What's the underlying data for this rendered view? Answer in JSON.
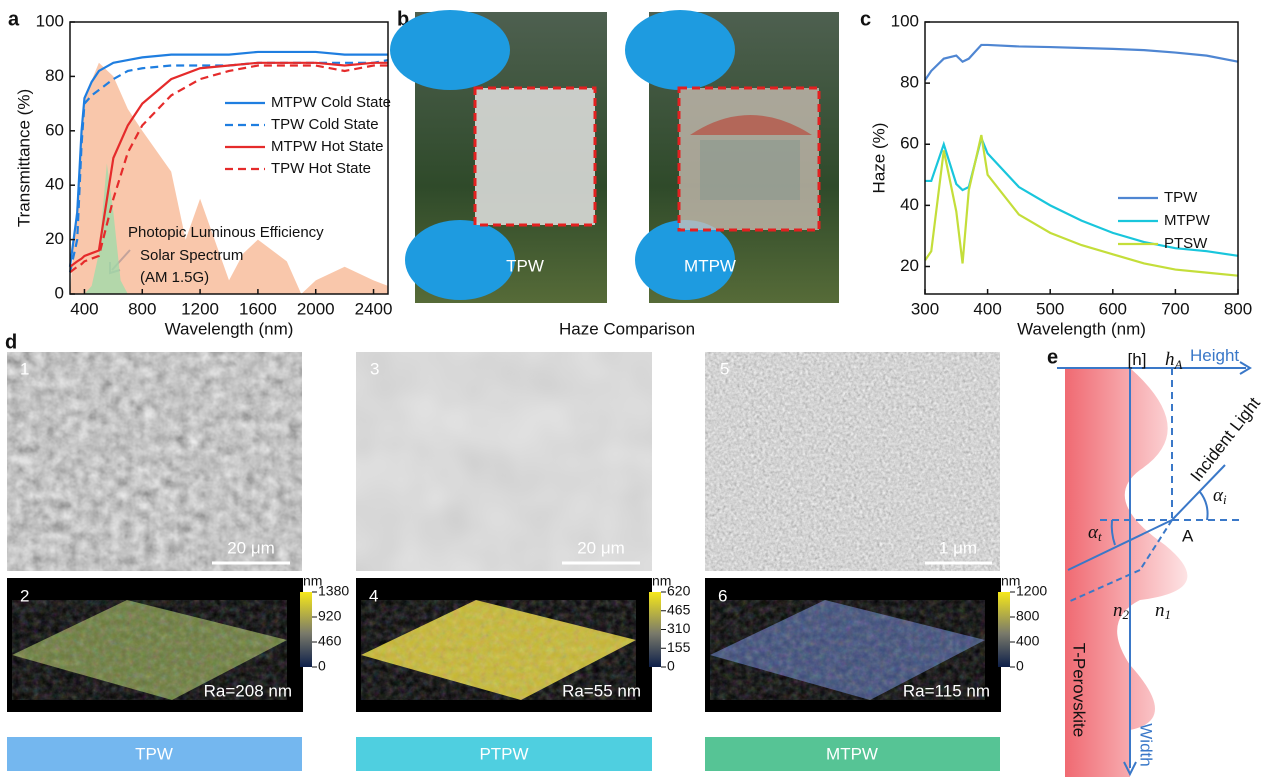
{
  "chart_data": [
    {
      "type": "line",
      "panel": "a",
      "xlabel": "Wavelength (nm)",
      "ylabel": "Transmittance  (%)",
      "xlim": [
        300,
        2500
      ],
      "ylim": [
        0,
        100
      ],
      "xticks": [
        400,
        800,
        1200,
        1600,
        2000,
        2400
      ],
      "yticks": [
        0,
        20,
        40,
        60,
        80,
        100
      ],
      "x": [
        300,
        350,
        380,
        400,
        450,
        500,
        600,
        700,
        800,
        1000,
        1200,
        1400,
        1600,
        1800,
        2000,
        2200,
        2400,
        2500
      ],
      "series": [
        {
          "name": "MTPW Cold State",
          "color": "#1f7ee0",
          "dash": false,
          "values": [
            10,
            30,
            60,
            72,
            78,
            82,
            85,
            86,
            87,
            88,
            88,
            88,
            89,
            89,
            89,
            88,
            88,
            88
          ]
        },
        {
          "name": "TPW Cold State",
          "color": "#1f7ee0",
          "dash": true,
          "values": [
            8,
            20,
            55,
            70,
            73,
            75,
            79,
            82,
            83,
            84,
            84,
            84,
            85,
            85,
            85,
            85,
            85,
            86
          ]
        },
        {
          "name": "MTPW Hot State",
          "color": "#e52b2b",
          "dash": false,
          "values": [
            10,
            12,
            13,
            14,
            15,
            16,
            50,
            62,
            70,
            79,
            83,
            84,
            85,
            85,
            85,
            84,
            85,
            85
          ]
        },
        {
          "name": "TPW Hot State",
          "color": "#e52b2b",
          "dash": true,
          "values": [
            8,
            10,
            11,
            12,
            13,
            14,
            35,
            52,
            62,
            73,
            79,
            82,
            84,
            84,
            84,
            82,
            84,
            84
          ]
        }
      ],
      "areas": [
        {
          "color": "#f7b48f",
          "x": [
            300,
            400,
            500,
            600,
            700,
            800,
            1000,
            1100,
            1200,
            1400,
            1500,
            1600,
            1800,
            1900,
            2000,
            2200,
            2400,
            2500
          ],
          "values": [
            0,
            72,
            85,
            80,
            68,
            60,
            45,
            20,
            35,
            5,
            15,
            20,
            12,
            0,
            5,
            10,
            5,
            3
          ]
        },
        {
          "color": "#9bdcaa",
          "x": [
            400,
            450,
            500,
            555,
            600,
            650,
            700
          ],
          "values": [
            0,
            3,
            15,
            48,
            30,
            5,
            0
          ]
        }
      ],
      "annotations": [
        "Photopic Luminous Efficiency",
        "Solar Spectrum",
        "(AM 1.5G)"
      ],
      "legend": "center right"
    },
    {
      "type": "line",
      "panel": "c",
      "xlabel": "Wavelength (nm)",
      "ylabel": "Haze (%)",
      "xlim": [
        300,
        800
      ],
      "ylim": [
        11,
        100
      ],
      "xticks": [
        300,
        400,
        500,
        600,
        700,
        800
      ],
      "yticks": [
        20,
        40,
        60,
        80,
        100
      ],
      "x": [
        300,
        310,
        330,
        350,
        360,
        370,
        390,
        400,
        450,
        500,
        550,
        600,
        650,
        700,
        750,
        800
      ],
      "series": [
        {
          "name": "TPW",
          "color": "#4f86d2",
          "dash": false,
          "values": [
            81,
            84,
            88,
            89,
            87,
            88,
            92.5,
            92.5,
            92,
            91.8,
            91.5,
            91.2,
            90.8,
            90,
            89,
            87
          ]
        },
        {
          "name": "MTPW",
          "color": "#19c6dc",
          "dash": false,
          "values": [
            48,
            48,
            60,
            47,
            45,
            46,
            62,
            57,
            46,
            40,
            35,
            31,
            28,
            26,
            25,
            23.5
          ]
        },
        {
          "name": "PTSW",
          "color": "#c4de3a",
          "dash": false,
          "values": [
            22,
            25,
            58,
            38,
            21,
            45,
            63,
            50,
            37,
            31,
            27,
            24,
            21,
            19,
            18,
            17
          ]
        }
      ],
      "areas": [],
      "annotations": [],
      "legend": "center right"
    }
  ],
  "panel_b": {
    "panel": "b",
    "left": "TPW",
    "right": "MTPW",
    "caption": "Haze Comparison"
  },
  "panel_d": {
    "panel": "d",
    "sem": [
      {
        "index": "1",
        "scale": "20 μm"
      },
      {
        "index": "3",
        "scale": "20 μm"
      },
      {
        "index": "5",
        "scale": "1 μm"
      }
    ],
    "afm": [
      {
        "index": "2",
        "unit": "nm",
        "ticks": [
          1380,
          920,
          460,
          0
        ],
        "ra": "Ra=208 nm"
      },
      {
        "index": "4",
        "unit": "nm",
        "ticks": [
          620,
          465,
          310,
          155,
          0
        ],
        "ra": "Ra=55 nm"
      },
      {
        "index": "6",
        "unit": "nm",
        "ticks": [
          1200,
          800,
          400,
          0
        ],
        "ra": "Ra=115 nm"
      }
    ],
    "labels": [
      "TPW",
      "PTPW",
      "MTPW"
    ]
  },
  "panel_e": {
    "panel": "e",
    "h": "[h]",
    "hA": {
      "base": "h",
      "sub": "A"
    },
    "height": "Height",
    "incident": "Incident Light",
    "alpha_i": {
      "base": "α",
      "sub": "i"
    },
    "alpha_t": {
      "base": "α",
      "sub": "t"
    },
    "point": "A",
    "n2": {
      "base": "n",
      "sub": "2"
    },
    "n1": {
      "base": "n",
      "sub": "1"
    },
    "material": "T-Perovskite",
    "width": "Width"
  }
}
